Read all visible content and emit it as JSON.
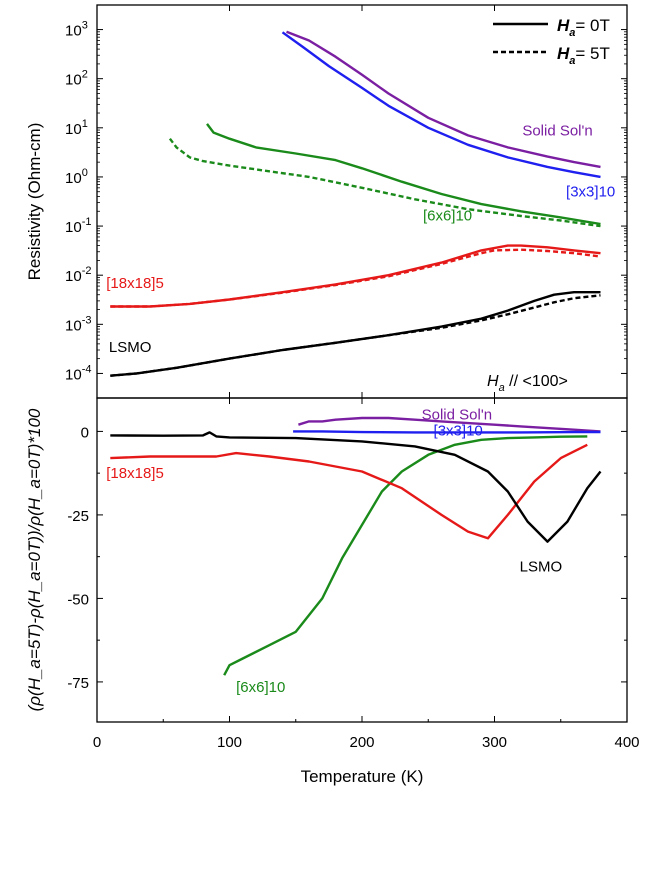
{
  "chart_data": [
    {
      "panel": "top",
      "type": "line",
      "yscale": "log",
      "xlim": [
        0,
        400
      ],
      "ylim_exponents": [
        -4.5,
        3.5
      ],
      "ylabel": "Resistivity (Ohm-cm)",
      "ytick_exponents": [
        -4,
        -3,
        -2,
        -1,
        0,
        1,
        2,
        3
      ],
      "ytick_base": "10",
      "legend": {
        "placement": "top-right",
        "entries": [
          {
            "symbol": "H",
            "sub": "a",
            "text": "= 0T",
            "style": "solid"
          },
          {
            "symbol": "H",
            "sub": "a",
            "text": "= 5T",
            "style": "dashed"
          }
        ]
      },
      "annotation": {
        "symbol": "H",
        "sub": "a",
        "text": " // <100>"
      },
      "series": [
        {
          "name": "Solid Sol'n",
          "field": "0T",
          "color": "#7b1fa2",
          "x": [
            143,
            160,
            180,
            200,
            220,
            250,
            280,
            310,
            340,
            360,
            380
          ],
          "y": [
            900,
            600,
            280,
            120,
            50,
            16,
            7,
            4,
            2.6,
            2.0,
            1.6
          ]
        },
        {
          "name": "[3x3]10",
          "field": "0T",
          "color": "#1f1fef",
          "x": [
            140,
            155,
            175,
            200,
            220,
            250,
            280,
            310,
            340,
            360,
            380
          ],
          "y": [
            880,
            450,
            180,
            65,
            28,
            10,
            4.5,
            2.5,
            1.6,
            1.25,
            1.0
          ]
        },
        {
          "name": "[6x6]10",
          "field": "0T",
          "color": "#1a8a1a",
          "x": [
            83,
            88,
            100,
            120,
            150,
            180,
            200,
            230,
            260,
            290,
            320,
            350,
            380
          ],
          "y": [
            12,
            8,
            6,
            4,
            3,
            2.2,
            1.5,
            0.8,
            0.45,
            0.28,
            0.2,
            0.15,
            0.11
          ]
        },
        {
          "name": "[6x6]10",
          "field": "5T",
          "color": "#1a8a1a",
          "x": [
            55,
            60,
            70,
            80,
            100,
            130,
            160,
            200,
            240,
            280,
            320,
            350,
            380
          ],
          "y": [
            6,
            4,
            2.5,
            2.1,
            1.7,
            1.3,
            1.0,
            0.6,
            0.35,
            0.22,
            0.16,
            0.13,
            0.1
          ]
        },
        {
          "name": "[18x18]5",
          "field": "0T",
          "color": "#e61919",
          "x": [
            10,
            40,
            70,
            100,
            140,
            180,
            220,
            260,
            290,
            310,
            320,
            340,
            360,
            380
          ],
          "y": [
            0.0023,
            0.0023,
            0.0026,
            0.0032,
            0.0045,
            0.0065,
            0.01,
            0.018,
            0.032,
            0.04,
            0.04,
            0.037,
            0.032,
            0.028
          ]
        },
        {
          "name": "[18x18]5",
          "field": "5T",
          "color": "#e61919",
          "x": [
            10,
            40,
            70,
            100,
            140,
            180,
            220,
            260,
            290,
            300,
            320,
            340,
            360,
            380
          ],
          "y": [
            0.0023,
            0.0023,
            0.0026,
            0.0032,
            0.0044,
            0.0063,
            0.0095,
            0.017,
            0.028,
            0.032,
            0.033,
            0.031,
            0.028,
            0.024
          ]
        },
        {
          "name": "LSMO",
          "field": "0T",
          "color": "#000000",
          "x": [
            10,
            30,
            60,
            100,
            140,
            180,
            220,
            260,
            290,
            310,
            330,
            345,
            360,
            380
          ],
          "y": [
            9e-05,
            0.0001,
            0.00013,
            0.0002,
            0.0003,
            0.00042,
            0.0006,
            0.0009,
            0.0013,
            0.0019,
            0.003,
            0.004,
            0.0045,
            0.0045
          ]
        },
        {
          "name": "LSMO",
          "field": "5T",
          "color": "#000000",
          "x": [
            10,
            30,
            60,
            100,
            140,
            180,
            220,
            260,
            290,
            310,
            330,
            345,
            360,
            380
          ],
          "y": [
            9e-05,
            0.0001,
            0.00013,
            0.0002,
            0.0003,
            0.00042,
            0.0006,
            0.00085,
            0.0012,
            0.0016,
            0.0022,
            0.0028,
            0.0034,
            0.0039
          ]
        }
      ],
      "labels": [
        {
          "text": "Solid Sol'n",
          "color": "#7b1fa2",
          "x": 321,
          "y": 7
        },
        {
          "text": "[3x3]10",
          "color": "#1f1fef",
          "x": 354,
          "y": 0.4
        },
        {
          "text": "[6x6]10",
          "color": "#1a8a1a",
          "x": 246,
          "y": 0.13
        },
        {
          "text": "[18x18]5",
          "color": "#e61919",
          "x": 7,
          "y": 0.0055
        },
        {
          "text": "LSMO",
          "color": "#000000",
          "x": 9,
          "y": 0.00027
        }
      ]
    },
    {
      "panel": "bottom",
      "type": "line",
      "xlim": [
        0,
        400
      ],
      "ylim": [
        -87,
        10
      ],
      "xlabel": "Temperature (K)",
      "ylabel": "(ρ(H_a=5T)-ρ(H_a=0T))/ρ(H_a=0T)*100",
      "xticks": [
        0,
        100,
        200,
        300,
        400
      ],
      "yticks": [
        0,
        -25,
        -50,
        -75
      ],
      "series": [
        {
          "name": "Solid Sol'n",
          "color": "#7b1fa2",
          "x": [
            152,
            160,
            170,
            180,
            200,
            220,
            240,
            260,
            280,
            300,
            320,
            340,
            360,
            380
          ],
          "y": [
            2,
            3,
            3,
            3.5,
            4,
            4,
            3.5,
            3,
            2.5,
            2,
            1.5,
            1,
            0.5,
            0
          ]
        },
        {
          "name": "[3x3]10",
          "color": "#1f1fef",
          "x": [
            148,
            170,
            200,
            240,
            280,
            320,
            360,
            380
          ],
          "y": [
            0,
            0,
            -0.2,
            -0.3,
            -0.3,
            -0.3,
            -0.2,
            -0.2
          ]
        },
        {
          "name": "[6x6]10",
          "color": "#1a8a1a",
          "x": [
            96,
            100,
            110,
            130,
            150,
            170,
            185,
            200,
            215,
            230,
            250,
            270,
            290,
            310,
            330,
            350,
            370
          ],
          "y": [
            -73,
            -70,
            -68,
            -64,
            -60,
            -50,
            -38,
            -28,
            -18,
            -12,
            -7,
            -4,
            -2.5,
            -2,
            -1.8,
            -1.6,
            -1.5
          ]
        },
        {
          "name": "[18x18]5",
          "color": "#e61919",
          "x": [
            10,
            40,
            70,
            90,
            105,
            130,
            160,
            200,
            230,
            260,
            280,
            295,
            310,
            330,
            350,
            360,
            370
          ],
          "y": [
            -8,
            -7.5,
            -7.5,
            -7.5,
            -6.5,
            -7.5,
            -9,
            -12,
            -17,
            -25,
            -30,
            -32,
            -25,
            -15,
            -8,
            -6,
            -4
          ]
        },
        {
          "name": "LSMO",
          "color": "#000000",
          "x": [
            10,
            50,
            80,
            85,
            90,
            100,
            150,
            200,
            240,
            270,
            295,
            310,
            325,
            340,
            355,
            370,
            380
          ],
          "y": [
            -1.2,
            -1.3,
            -1.2,
            -0.3,
            -1.5,
            -1.8,
            -2,
            -3,
            -4.5,
            -7,
            -12,
            -18,
            -27,
            -33,
            -27,
            -17,
            -12
          ]
        }
      ],
      "labels": [
        {
          "text": "Solid Sol'n",
          "color": "#7b1fa2",
          "x": 245,
          "y": 3.5
        },
        {
          "text": "[3x3]10",
          "color": "#1f1fef",
          "x": 254,
          "y": -1.3
        },
        {
          "text": "[18x18]5",
          "color": "#e61919",
          "x": 7,
          "y": -14
        },
        {
          "text": "LSMO",
          "color": "#000000",
          "x": 319,
          "y": -42
        },
        {
          "text": "[6x6]10",
          "color": "#1a8a1a",
          "x": 105,
          "y": -78
        }
      ]
    }
  ]
}
